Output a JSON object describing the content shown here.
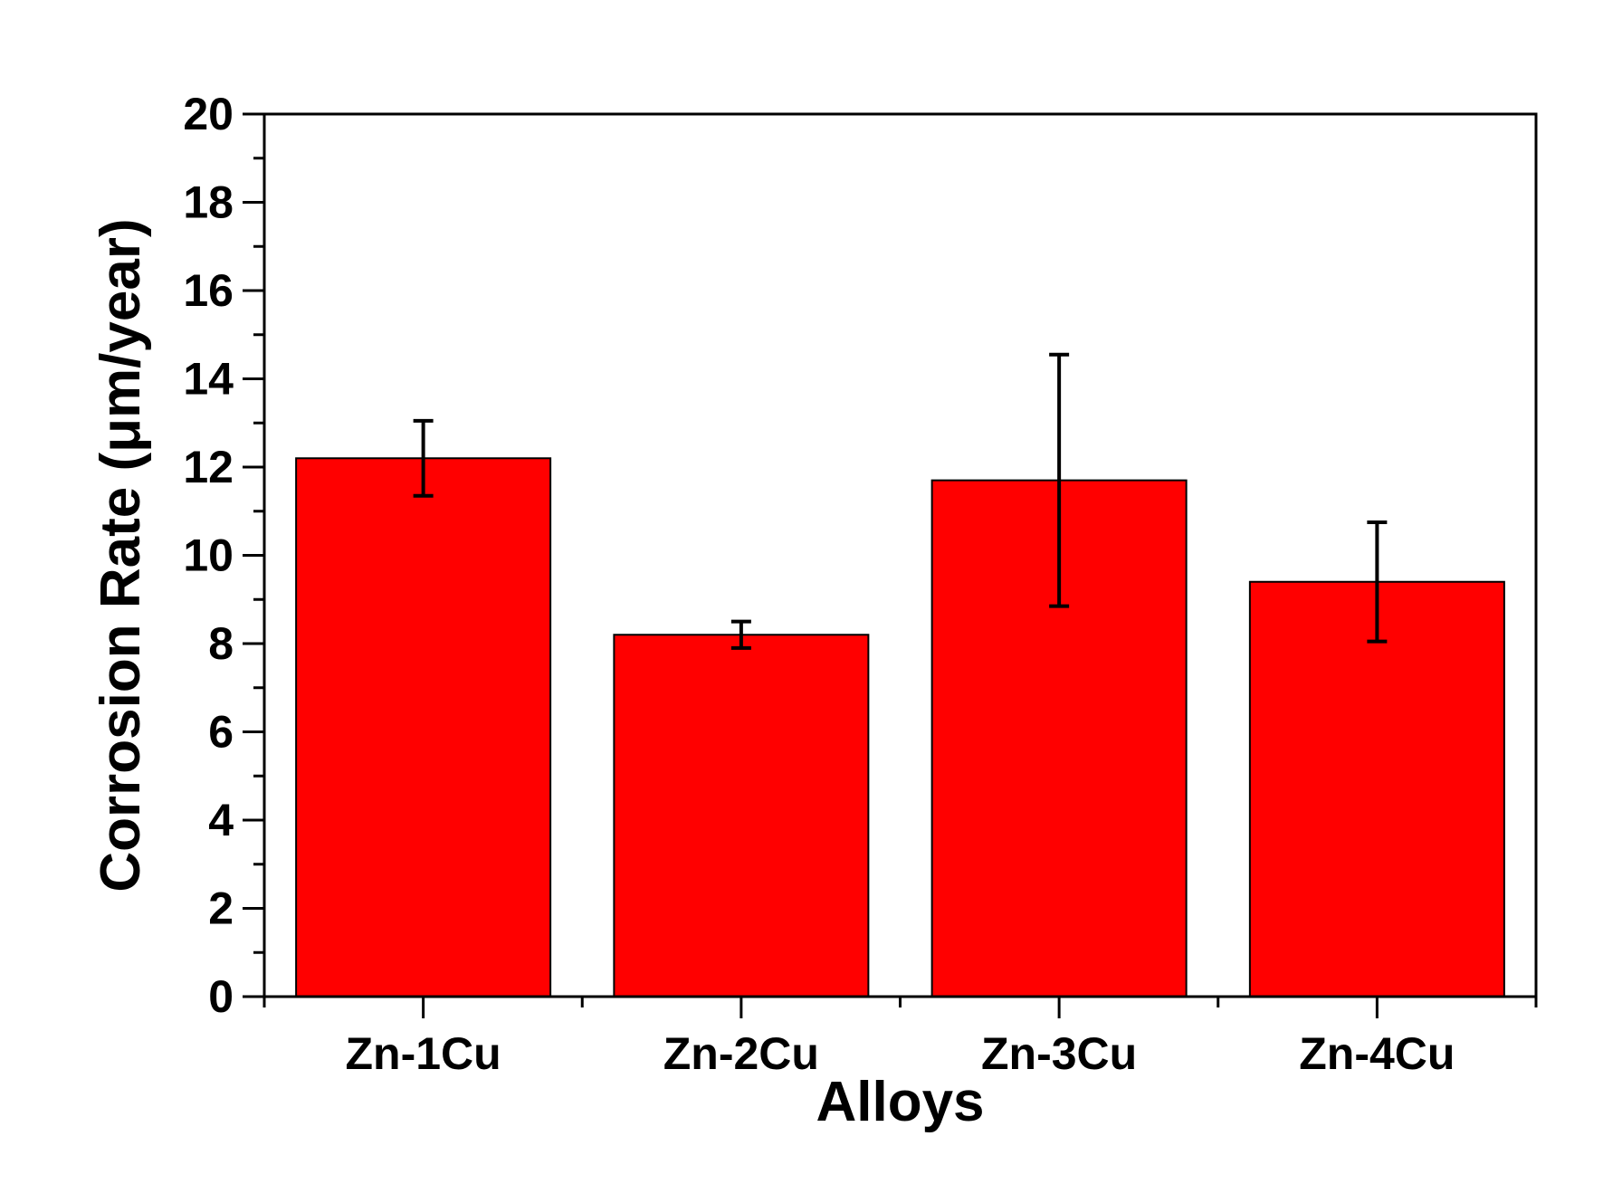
{
  "chart_data": {
    "type": "bar",
    "title": "",
    "xlabel": "Alloys",
    "ylabel": "Corrosion Rate (μm/year)",
    "categories": [
      "Zn-1Cu",
      "Zn-2Cu",
      "Zn-3Cu",
      "Zn-4Cu"
    ],
    "values": [
      12.2,
      8.2,
      11.7,
      9.4
    ],
    "error_low": [
      11.35,
      7.9,
      8.85,
      8.05
    ],
    "error_high": [
      13.05,
      8.5,
      14.55,
      10.75
    ],
    "ylim": [
      0,
      20
    ],
    "y_major_ticks": [
      0,
      2,
      4,
      6,
      8,
      10,
      12,
      14,
      16,
      18,
      20
    ],
    "y_minor_step": 1,
    "grid": false,
    "legend": "none",
    "colors": {
      "bar_fill": "#ff0000",
      "bar_stroke": "#000000",
      "error_bar": "#000000",
      "axis": "#000000"
    }
  }
}
